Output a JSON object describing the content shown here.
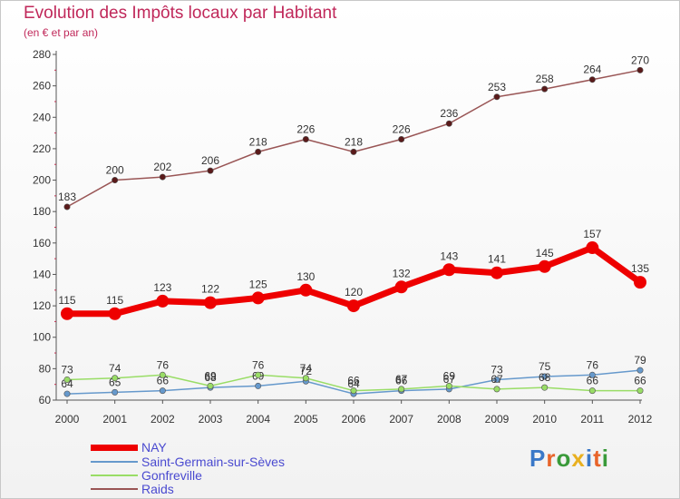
{
  "title": "Evolution des Impôts locaux par Habitant",
  "subtitle": "(en € et par an)",
  "logo": {
    "letters": [
      "P",
      "r",
      "o",
      "x",
      "i",
      "t",
      "i"
    ],
    "colors": [
      "#3a78c8",
      "#e8642a",
      "#3a9a3a",
      "#e8b020",
      "#3a78c8",
      "#e8642a",
      "#3a9a3a"
    ]
  },
  "chart_data": {
    "type": "line",
    "x": [
      "2000",
      "2001",
      "2002",
      "2003",
      "2004",
      "2005",
      "2006",
      "2007",
      "2008",
      "2009",
      "2010",
      "2011",
      "2012"
    ],
    "ylim": [
      60,
      280
    ],
    "yticks": [
      60,
      80,
      100,
      120,
      140,
      160,
      180,
      200,
      220,
      240,
      260,
      280
    ],
    "grid": false,
    "legend_position": "bottom-left",
    "series": [
      {
        "name": "NAY",
        "color": "#ee0000",
        "style": "thick",
        "values": [
          115,
          115,
          123,
          122,
          125,
          130,
          120,
          132,
          143,
          141,
          145,
          157,
          135
        ]
      },
      {
        "name": "Saint-Germain-sur-Sèves",
        "color": "#6699cc",
        "style": "thin",
        "values": [
          64,
          65,
          66,
          68,
          69,
          72,
          64,
          66,
          67,
          73,
          75,
          76,
          79
        ]
      },
      {
        "name": "Gonfreville",
        "color": "#99dd66",
        "style": "thin",
        "values": [
          73,
          74,
          76,
          69,
          76,
          74,
          66,
          67,
          69,
          67,
          68,
          66,
          66
        ]
      },
      {
        "name": "Raids",
        "color": "#995555",
        "style": "thin",
        "values": [
          183,
          200,
          202,
          206,
          218,
          226,
          218,
          226,
          236,
          253,
          258,
          264,
          270
        ]
      }
    ]
  }
}
